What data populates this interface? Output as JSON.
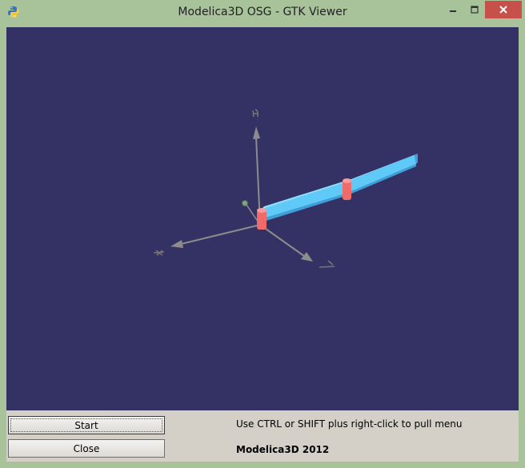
{
  "window": {
    "title": "Modelica3D OSG - GTK Viewer",
    "icon": "python-icon",
    "controls": {
      "minimize_icon": "minimize-icon",
      "maximize_icon": "maximize-icon",
      "close_icon": "close-icon"
    }
  },
  "viewport": {
    "background": "#343264",
    "scene": {
      "beam_color": "#5fcaf8",
      "joint_color": "#f06a6a",
      "axis_color": "#8c8c8c"
    }
  },
  "controls": {
    "start_label": "Start",
    "close_label": "Close",
    "hint": "Use CTRL or SHIFT plus right-click to pull menu",
    "brand": "Modelica3D 2012"
  }
}
